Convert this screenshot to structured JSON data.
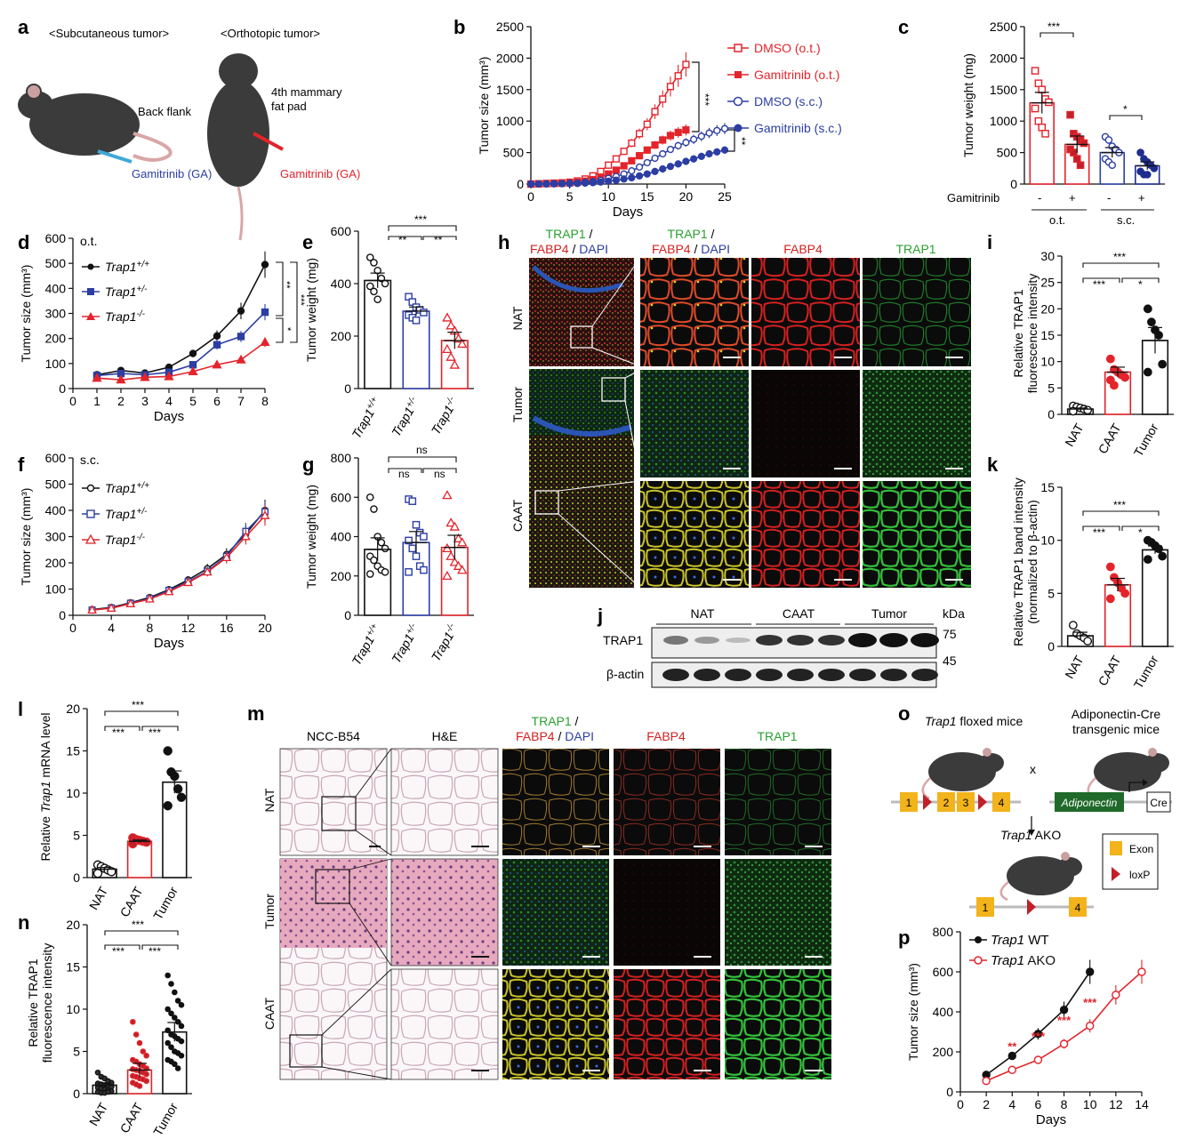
{
  "panel_letters": {
    "a": "a",
    "b": "b",
    "c": "c",
    "d": "d",
    "e": "e",
    "f": "f",
    "g": "g",
    "h": "h",
    "i": "i",
    "j": "j",
    "k": "k",
    "l": "l",
    "m": "m",
    "n": "n",
    "o": "o",
    "p": "p"
  },
  "colors": {
    "black": "#111111",
    "red": "#e3242b",
    "blue": "#2c3ea3",
    "navy": "#1f2d8f",
    "green": "#29a02f",
    "fabp4": "#d42020",
    "gray": "#9a9a9a",
    "exon": "#f2b31b"
  },
  "panel_a": {
    "subcutaneous_label": "<Subcutaneous tumor>",
    "orthotopic_label": "<Orthotopic tumor>",
    "back_flank": "Back flank",
    "mammary_line1": "4th mammary",
    "mammary_line2": "fat pad",
    "injection_sc": "Gamitrinib (GA)",
    "injection_ot": "Gamitrinib (GA)"
  },
  "panel_b": {
    "legend": [
      "DMSO (o.t.)",
      "Gamitrinib (o.t.)",
      "DMSO (s.c.)",
      "Gamitrinib (s.c.)"
    ],
    "sig_top": "***",
    "sig_bottom": "**"
  },
  "panel_c": {
    "group_labels": [
      "o.t.",
      "s.c."
    ],
    "row_label": "Gamitrinib",
    "signs": [
      "-",
      "+",
      "-",
      "+"
    ],
    "sig_ot": "***",
    "sig_sc": "*"
  },
  "panel_d": {
    "tag": "o.t.",
    "legend": [
      "Trap1",
      "Trap1",
      "Trap1"
    ],
    "legend_sup": [
      "+/+",
      "+/-",
      "-/-"
    ],
    "sigs": [
      "**",
      "***",
      "*"
    ]
  },
  "panel_e": {
    "sigs": [
      "***",
      "**",
      "**"
    ]
  },
  "panel_f": {
    "tag": "s.c.",
    "legend": [
      "Trap1",
      "Trap1",
      "Trap1"
    ],
    "legend_sup": [
      "+/+",
      "+/-",
      "-/-"
    ]
  },
  "panel_g": {
    "sigs": [
      "ns",
      "ns",
      "ns"
    ]
  },
  "panel_h": {
    "col_trap1": "TRAP1",
    "col_slash": " /",
    "col_fabp4": "FABP4",
    "col_dapi": "DAPI",
    "col_fabp4_only": "FABP4",
    "col_trap1_only": "TRAP1",
    "rows": [
      "NAT",
      "Tumor",
      "CAAT"
    ]
  },
  "panel_i": {
    "ylabel_line1": "Relative TRAP1",
    "ylabel_line2": "fluorescence intensity",
    "sigs": [
      "***",
      "***",
      "*"
    ]
  },
  "panel_j": {
    "groups": [
      "NAT",
      "CAAT",
      "Tumor"
    ],
    "kda": "kDa",
    "bands": [
      "TRAP1",
      "β-actin"
    ],
    "markers": [
      "75",
      "45"
    ]
  },
  "panel_k": {
    "ylabel_line1": "Relative TRAP1 band intensity",
    "ylabel_line2": "(normalized to β-actin)",
    "sigs": [
      "***",
      "***",
      "*"
    ]
  },
  "panel_l": {
    "ylabel_pre": "Relative ",
    "ylabel_gene": "Trap1",
    "ylabel_post": " mRNA level",
    "sigs": [
      "***",
      "***",
      "***"
    ]
  },
  "panel_m": {
    "cols": [
      "NCC-B54",
      "H&E",
      "TRAP1",
      "FABP4",
      "DAPI",
      "FABP4",
      "TRAP1"
    ],
    "rows": [
      "NAT",
      "Tumor",
      "CAAT"
    ]
  },
  "panel_n": {
    "ylabel_line1": "Relative TRAP1",
    "ylabel_line2": "fluorescence intensity",
    "sigs": [
      "***",
      "***",
      "***"
    ]
  },
  "panel_o": {
    "floxed_gene": "Trap1",
    "floxed_rest": " floxed mice",
    "cre_line1": "Adiponectin-Cre",
    "cre_line2": "transgenic mice",
    "cross": "x",
    "exons": [
      "1",
      "2",
      "3",
      "4"
    ],
    "adiponectin": "Adiponectin",
    "cre": "Cre",
    "ako_gene": "Trap1",
    "ako_rest": " AKO",
    "legend_exon": "Exon",
    "legend_loxp": "loxP",
    "ako_exons": [
      "1",
      "4"
    ]
  },
  "panel_p": {
    "legend_gene": "Trap1",
    "legend": [
      " WT",
      " AKO"
    ],
    "sigs": [
      "**",
      "***",
      "***",
      "***"
    ]
  },
  "chart_data": [
    {
      "panel": "b",
      "type": "line",
      "x": [
        0,
        1,
        2,
        3,
        4,
        5,
        6,
        7,
        8,
        9,
        10,
        11,
        12,
        13,
        14,
        15,
        16,
        17,
        18,
        19,
        20,
        21,
        22,
        23,
        24,
        25
      ],
      "xlabel": "Days",
      "ylabel": "Tumor size (mm³)",
      "xlim": [
        0,
        25
      ],
      "ylim": [
        0,
        2500
      ],
      "xticks": [
        0,
        5,
        10,
        15,
        20,
        25
      ],
      "yticks": [
        0,
        500,
        1000,
        1500,
        2000,
        2500
      ],
      "series": [
        {
          "name": "DMSO (o.t.)",
          "x": [
            0,
            1,
            2,
            3,
            4,
            5,
            6,
            7,
            8,
            9,
            10,
            11,
            12,
            13,
            14,
            15,
            16,
            17,
            18,
            19,
            20
          ],
          "values": [
            0,
            5,
            10,
            15,
            20,
            30,
            50,
            80,
            130,
            200,
            300,
            400,
            520,
            650,
            800,
            950,
            1150,
            1350,
            1550,
            1720,
            1900
          ]
        },
        {
          "name": "Gamitrinib (o.t.)",
          "x": [
            0,
            1,
            2,
            3,
            4,
            5,
            6,
            7,
            8,
            9,
            10,
            11,
            12,
            13,
            14,
            15,
            16,
            17,
            18,
            19,
            20
          ],
          "values": [
            0,
            3,
            6,
            9,
            12,
            18,
            28,
            45,
            70,
            110,
            160,
            220,
            290,
            370,
            450,
            540,
            620,
            700,
            770,
            820,
            860
          ]
        },
        {
          "name": "DMSO (s.c.)",
          "x": [
            0,
            1,
            2,
            3,
            4,
            5,
            6,
            7,
            8,
            9,
            10,
            11,
            12,
            13,
            14,
            15,
            16,
            17,
            18,
            19,
            20,
            21,
            22,
            23,
            24,
            25
          ],
          "values": [
            0,
            2,
            4,
            6,
            8,
            12,
            18,
            28,
            40,
            60,
            90,
            120,
            160,
            210,
            270,
            340,
            410,
            480,
            550,
            610,
            660,
            710,
            760,
            810,
            850,
            880
          ]
        },
        {
          "name": "Gamitrinib (s.c.)",
          "x": [
            0,
            1,
            2,
            3,
            4,
            5,
            6,
            7,
            8,
            9,
            10,
            11,
            12,
            13,
            14,
            15,
            16,
            17,
            18,
            19,
            20,
            21,
            22,
            23,
            24,
            25
          ],
          "values": [
            0,
            1,
            2,
            3,
            5,
            7,
            10,
            15,
            22,
            32,
            45,
            60,
            80,
            100,
            130,
            160,
            200,
            240,
            280,
            320,
            360,
            400,
            440,
            480,
            510,
            540
          ]
        }
      ]
    },
    {
      "panel": "c",
      "type": "bar",
      "categories": [
        "DMSO o.t.",
        "Gamitrinib o.t.",
        "DMSO s.c.",
        "Gamitrinib s.c."
      ],
      "values": [
        1290,
        630,
        500,
        290
      ],
      "ylabel": "Tumor weight (mg)",
      "ylim": [
        0,
        2500
      ],
      "yticks": [
        0,
        500,
        1000,
        1500,
        2000,
        2500
      ],
      "points": [
        [
          1800,
          1600,
          1500,
          1350,
          1300,
          1200,
          1000,
          900,
          800
        ],
        [
          1100,
          800,
          750,
          700,
          650,
          550,
          500,
          400,
          300
        ],
        [
          750,
          700,
          600,
          550,
          500,
          400,
          350,
          300
        ],
        [
          500,
          400,
          350,
          300,
          250,
          200,
          150,
          150
        ]
      ]
    },
    {
      "panel": "d",
      "type": "line",
      "xlabel": "Days",
      "ylabel": "Tumor size (mm³)",
      "xlim": [
        0,
        8
      ],
      "ylim": [
        0,
        600
      ],
      "xticks": [
        0,
        1,
        2,
        3,
        4,
        5,
        6,
        7,
        8
      ],
      "yticks": [
        0,
        100,
        200,
        300,
        400,
        500,
        600
      ],
      "series": [
        {
          "name": "Trap1+/+",
          "x": [
            1,
            2,
            3,
            4,
            5,
            6,
            7,
            8
          ],
          "values": [
            55,
            72,
            62,
            85,
            140,
            210,
            310,
            495
          ]
        },
        {
          "name": "Trap1+/-",
          "x": [
            1,
            2,
            3,
            4,
            5,
            6,
            7,
            8
          ],
          "values": [
            52,
            60,
            55,
            65,
            95,
            175,
            208,
            305
          ]
        },
        {
          "name": "Trap1-/-",
          "x": [
            1,
            2,
            3,
            4,
            5,
            6,
            7,
            8
          ],
          "values": [
            42,
            35,
            45,
            48,
            68,
            95,
            115,
            185
          ]
        }
      ]
    },
    {
      "panel": "e",
      "type": "bar",
      "categories": [
        "Trap1+/+",
        "Trap1+/-",
        "Trap1-/-"
      ],
      "values": [
        412,
        295,
        183
      ],
      "ylabel": "Tumor weight (mg)",
      "ylim": [
        0,
        600
      ],
      "yticks": [
        0,
        200,
        400,
        600
      ],
      "points": [
        [
          500,
          480,
          450,
          420,
          400,
          390,
          370,
          340
        ],
        [
          350,
          330,
          310,
          300,
          290,
          280,
          270,
          260
        ],
        [
          270,
          240,
          220,
          190,
          170,
          150,
          120,
          90
        ]
      ]
    },
    {
      "panel": "f",
      "type": "line",
      "xlabel": "Days",
      "ylabel": "Tumor size (mm³)",
      "xlim": [
        0,
        20
      ],
      "ylim": [
        0,
        600
      ],
      "xticks": [
        0,
        4,
        8,
        12,
        16,
        20
      ],
      "yticks": [
        0,
        100,
        200,
        300,
        400,
        500,
        600
      ],
      "series": [
        {
          "name": "Trap1+/+",
          "x": [
            2,
            4,
            6,
            8,
            10,
            12,
            14,
            16,
            18,
            20
          ],
          "values": [
            22,
            30,
            48,
            68,
            98,
            135,
            178,
            232,
            310,
            400
          ]
        },
        {
          "name": "Trap1+/-",
          "x": [
            2,
            4,
            6,
            8,
            10,
            12,
            14,
            16,
            18,
            20
          ],
          "values": [
            20,
            28,
            46,
            64,
            95,
            128,
            168,
            225,
            320,
            395
          ]
        },
        {
          "name": "Trap1-/-",
          "x": [
            2,
            4,
            6,
            8,
            10,
            12,
            14,
            16,
            18,
            20
          ],
          "values": [
            20,
            27,
            44,
            62,
            90,
            125,
            165,
            220,
            300,
            380
          ]
        }
      ]
    },
    {
      "panel": "g",
      "type": "bar",
      "categories": [
        "Trap1+/+",
        "Trap1+/-",
        "Trap1-/-"
      ],
      "values": [
        335,
        370,
        345
      ],
      "ylabel": "Tumor weight (mg)",
      "ylim": [
        0,
        800
      ],
      "yticks": [
        0,
        200,
        400,
        600,
        800
      ],
      "points": [
        [
          600,
          540,
          400,
          370,
          340,
          300,
          280,
          250,
          230,
          220,
          210
        ],
        [
          590,
          580,
          460,
          420,
          400,
          380,
          340,
          300,
          250,
          230,
          220
        ],
        [
          610,
          470,
          450,
          390,
          370,
          340,
          300,
          270,
          250,
          230,
          200
        ]
      ]
    },
    {
      "panel": "i",
      "type": "bar",
      "categories": [
        "NAT",
        "CAAT",
        "Tumor"
      ],
      "values": [
        1,
        8,
        14
      ],
      "ylim": [
        0,
        30
      ],
      "yticks": [
        0,
        5,
        10,
        15,
        20,
        25,
        30
      ],
      "points": [
        [
          1.6,
          1.4,
          1.2,
          1.0,
          0.8,
          0.6
        ],
        [
          10.5,
          8.5,
          8,
          7.5,
          7,
          6.5,
          5.5
        ],
        [
          20,
          17.5,
          16,
          15,
          9.5,
          8
        ]
      ]
    },
    {
      "panel": "k",
      "type": "bar",
      "categories": [
        "NAT",
        "CAAT",
        "Tumor"
      ],
      "values": [
        1,
        5.8,
        9.1
      ],
      "ylim": [
        0,
        15
      ],
      "yticks": [
        0,
        5,
        10,
        15
      ],
      "points": [
        [
          2,
          1.2,
          1,
          0.8,
          0.5
        ],
        [
          7.5,
          6.5,
          6,
          5.5,
          5,
          4.5
        ],
        [
          10,
          9.8,
          9.5,
          9.2,
          8.5,
          8.2
        ]
      ]
    },
    {
      "panel": "l",
      "type": "bar",
      "categories": [
        "NAT",
        "CAAT",
        "Tumor"
      ],
      "values": [
        1,
        4.3,
        11.3
      ],
      "ylim": [
        0,
        20
      ],
      "yticks": [
        0,
        5,
        10,
        15,
        20
      ],
      "points": [
        [
          1.5,
          1.3,
          1.1,
          0.9,
          0.7,
          0.5
        ],
        [
          4.7,
          4.5,
          4.4,
          4.3,
          4.2,
          4.0
        ],
        [
          15,
          12.5,
          12,
          10.5,
          9.5,
          8.5
        ]
      ]
    },
    {
      "panel": "n",
      "type": "bar",
      "categories": [
        "NAT",
        "CAAT",
        "Tumor"
      ],
      "values": [
        1,
        2.8,
        7.3
      ],
      "ylim": [
        0,
        20
      ],
      "yticks": [
        0,
        5,
        10,
        15,
        20
      ],
      "points": [
        [
          2.5,
          2,
          1.8,
          1.5,
          1.3,
          1.2,
          1.1,
          1,
          0.9,
          0.8,
          0.7,
          0.6,
          0.5,
          0.4,
          0.3,
          0.2,
          0.1,
          0.1,
          0.2
        ],
        [
          8.5,
          7,
          6,
          5,
          4.5,
          4,
          3.8,
          3.5,
          3.3,
          3,
          2.9,
          2.8,
          2.7,
          2.5,
          2.3,
          2.1,
          2,
          1.8,
          1.7,
          1.5,
          1.3,
          1.1,
          0.9
        ],
        [
          14,
          13,
          12,
          11,
          10.5,
          10,
          9.5,
          9,
          8.5,
          8,
          7.5,
          7,
          6.8,
          6.5,
          6.2,
          6,
          5.5,
          5,
          4.8,
          4.5,
          4,
          3.8,
          3.5,
          3
        ]
      ]
    },
    {
      "panel": "p",
      "type": "line",
      "xlabel": "Days",
      "ylabel": "Tumor size (mm³)",
      "xlim": [
        0,
        14
      ],
      "ylim": [
        0,
        800
      ],
      "xticks": [
        0,
        2,
        4,
        6,
        8,
        10,
        12,
        14
      ],
      "yticks": [
        0,
        200,
        400,
        600,
        800
      ],
      "series": [
        {
          "name": "Trap1 WT",
          "x": [
            2,
            4,
            6,
            8,
            10
          ],
          "values": [
            85,
            180,
            290,
            410,
            600
          ]
        },
        {
          "name": "Trap1 AKO",
          "x": [
            2,
            4,
            6,
            8,
            10,
            12,
            14
          ],
          "values": [
            55,
            110,
            160,
            240,
            330,
            485,
            600
          ]
        }
      ]
    }
  ]
}
